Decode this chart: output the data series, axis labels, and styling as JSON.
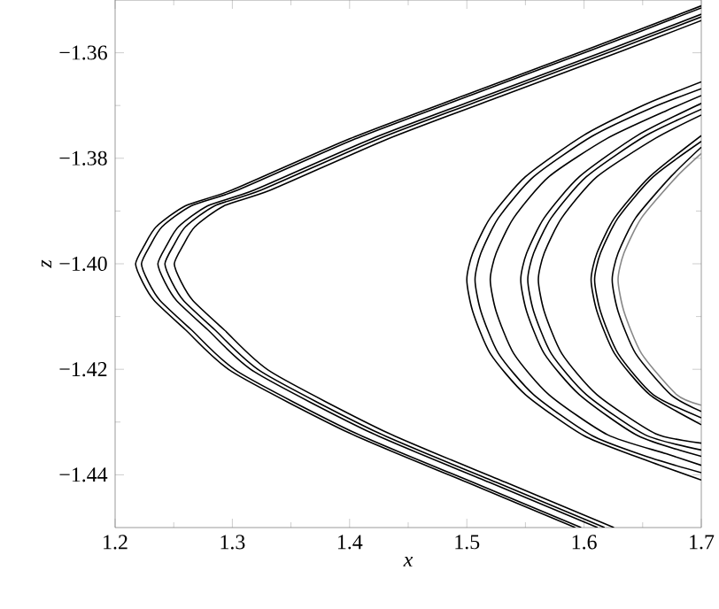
{
  "chart_data": {
    "type": "line",
    "xlabel": "x",
    "ylabel": "z",
    "xlim": [
      1.2,
      1.7
    ],
    "ylim": [
      -1.45,
      -1.35
    ],
    "xticks": [
      1.2,
      1.3,
      1.4,
      1.5,
      1.6,
      1.7
    ],
    "yticks": [
      {
        "value": -1.44,
        "label": "−1.44"
      },
      {
        "value": -1.42,
        "label": "−1.42"
      },
      {
        "value": -1.4,
        "label": "−1.40"
      },
      {
        "value": -1.38,
        "label": "−1.38"
      },
      {
        "value": -1.36,
        "label": "−1.36"
      }
    ],
    "marker": "none",
    "line_style": "solid",
    "series": [
      {
        "color": "#000000",
        "x": [
          1.7,
          1.6,
          1.5,
          1.4,
          1.3,
          1.26,
          1.235,
          1.225,
          1.2175,
          1.2235,
          1.2335,
          1.26,
          1.3,
          1.4,
          1.5,
          1.5925
        ],
        "values": [
          -1.3511,
          -1.3596,
          -1.3679,
          -1.3763,
          -1.386,
          -1.389,
          -1.393,
          -1.3965,
          -1.4,
          -1.4035,
          -1.407,
          -1.4125,
          -1.4205,
          -1.4321,
          -1.4414,
          -1.45
        ]
      },
      {
        "color": "#000000",
        "x": [
          1.7,
          1.605,
          1.505,
          1.405,
          1.305,
          1.265,
          1.24,
          1.23,
          1.2225,
          1.2285,
          1.2385,
          1.265,
          1.305,
          1.405,
          1.505,
          1.5975
        ],
        "values": [
          -1.3515,
          -1.3596,
          -1.3679,
          -1.3763,
          -1.386,
          -1.389,
          -1.393,
          -1.3965,
          -1.4,
          -1.4035,
          -1.407,
          -1.4125,
          -1.4205,
          -1.4321,
          -1.4414,
          -1.45
        ]
      },
      {
        "color": "#000000",
        "x": [
          1.7,
          1.619,
          1.519,
          1.419,
          1.319,
          1.279,
          1.254,
          1.244,
          1.2365,
          1.2425,
          1.2525,
          1.279,
          1.319,
          1.419,
          1.519,
          1.6115
        ],
        "values": [
          -1.3527,
          -1.3596,
          -1.3679,
          -1.3763,
          -1.386,
          -1.389,
          -1.393,
          -1.3965,
          -1.4,
          -1.4035,
          -1.407,
          -1.4125,
          -1.4205,
          -1.4321,
          -1.4414,
          -1.45
        ]
      },
      {
        "color": "#000000",
        "x": [
          1.7,
          1.625,
          1.525,
          1.425,
          1.325,
          1.285,
          1.26,
          1.25,
          1.2425,
          1.2485,
          1.2585,
          1.285,
          1.325,
          1.425,
          1.525,
          1.6175
        ],
        "values": [
          -1.3532,
          -1.3596,
          -1.3679,
          -1.3763,
          -1.386,
          -1.389,
          -1.393,
          -1.3965,
          -1.4,
          -1.4035,
          -1.407,
          -1.4125,
          -1.4205,
          -1.4321,
          -1.4414,
          -1.45
        ]
      },
      {
        "color": "#000000",
        "x": [
          1.7,
          1.633,
          1.533,
          1.433,
          1.333,
          1.293,
          1.268,
          1.258,
          1.2505,
          1.2565,
          1.2665,
          1.293,
          1.333,
          1.433,
          1.533,
          1.6255
        ],
        "values": [
          -1.3539,
          -1.3596,
          -1.3679,
          -1.3763,
          -1.386,
          -1.389,
          -1.393,
          -1.3965,
          -1.4,
          -1.4035,
          -1.407,
          -1.4125,
          -1.4205,
          -1.4321,
          -1.4414,
          -1.45
        ]
      },
      {
        "color": "#000000",
        "x": [
          1.7,
          1.65,
          1.6,
          1.55,
          1.52,
          1.505,
          1.5,
          1.505,
          1.52,
          1.55,
          1.6,
          1.65,
          1.7
        ],
        "values": [
          -1.3655,
          -1.37,
          -1.3756,
          -1.3835,
          -1.3913,
          -1.398,
          -1.403,
          -1.409,
          -1.417,
          -1.4248,
          -1.4326,
          -1.437,
          -1.441
        ]
      },
      {
        "color": "#000000",
        "x": [
          1.7,
          1.657,
          1.607,
          1.557,
          1.527,
          1.512,
          1.507,
          1.512,
          1.527,
          1.557,
          1.607,
          1.657,
          1.7
        ],
        "values": [
          -1.3668,
          -1.3705,
          -1.3758,
          -1.3835,
          -1.3913,
          -1.398,
          -1.403,
          -1.409,
          -1.417,
          -1.4248,
          -1.4326,
          -1.4368,
          -1.4396
        ]
      },
      {
        "color": "#000000",
        "x": [
          1.7,
          1.67,
          1.62,
          1.57,
          1.54,
          1.525,
          1.52,
          1.525,
          1.54,
          1.57,
          1.62,
          1.67,
          1.7
        ],
        "values": [
          -1.3681,
          -1.371,
          -1.3762,
          -1.3835,
          -1.3913,
          -1.398,
          -1.403,
          -1.409,
          -1.417,
          -1.4248,
          -1.4324,
          -1.436,
          -1.4382
        ]
      },
      {
        "color": "#000000",
        "x": [
          1.7,
          1.646,
          1.596,
          1.566,
          1.551,
          1.546,
          1.551,
          1.566,
          1.596,
          1.646,
          1.7
        ],
        "values": [
          -1.3696,
          -1.3756,
          -1.3835,
          -1.3913,
          -1.398,
          -1.403,
          -1.409,
          -1.417,
          -1.4248,
          -1.4326,
          -1.4365
        ]
      },
      {
        "color": "#000000",
        "x": [
          1.7,
          1.652,
          1.602,
          1.572,
          1.557,
          1.552,
          1.557,
          1.572,
          1.602,
          1.652,
          1.7
        ],
        "values": [
          -1.3707,
          -1.3758,
          -1.3835,
          -1.3913,
          -1.398,
          -1.403,
          -1.409,
          -1.417,
          -1.4248,
          -1.4324,
          -1.4353
        ]
      },
      {
        "color": "#000000",
        "x": [
          1.7,
          1.661,
          1.611,
          1.581,
          1.566,
          1.561,
          1.566,
          1.581,
          1.611,
          1.661,
          1.7
        ],
        "values": [
          -1.3718,
          -1.3762,
          -1.3835,
          -1.3913,
          -1.398,
          -1.403,
          -1.409,
          -1.417,
          -1.4248,
          -1.4322,
          -1.434
        ]
      },
      {
        "color": "#000000",
        "x": [
          1.7,
          1.656,
          1.626,
          1.611,
          1.606,
          1.611,
          1.626,
          1.656,
          1.7
        ],
        "values": [
          -1.3757,
          -1.3835,
          -1.3913,
          -1.398,
          -1.403,
          -1.409,
          -1.417,
          -1.4248,
          -1.4305
        ]
      },
      {
        "color": "#000000",
        "x": [
          1.7,
          1.659,
          1.629,
          1.614,
          1.609,
          1.614,
          1.629,
          1.659,
          1.7
        ],
        "values": [
          -1.3768,
          -1.3835,
          -1.3913,
          -1.398,
          -1.403,
          -1.409,
          -1.417,
          -1.4248,
          -1.4292
        ]
      },
      {
        "color": "#000000",
        "x": [
          1.7,
          1.674,
          1.644,
          1.629,
          1.624,
          1.629,
          1.644,
          1.674,
          1.7
        ],
        "values": [
          -1.3779,
          -1.3835,
          -1.3913,
          -1.398,
          -1.403,
          -1.409,
          -1.417,
          -1.4248,
          -1.428
        ]
      },
      {
        "color": "#888888",
        "x": [
          1.7,
          1.679,
          1.649,
          1.634,
          1.629,
          1.634,
          1.649,
          1.679,
          1.7
        ],
        "values": [
          -1.3791,
          -1.3835,
          -1.3913,
          -1.398,
          -1.403,
          -1.409,
          -1.417,
          -1.4248,
          -1.4268
        ]
      }
    ]
  }
}
